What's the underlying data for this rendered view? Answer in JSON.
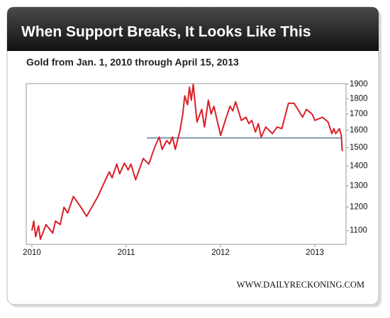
{
  "chart_data": {
    "type": "line",
    "title": "When Support Breaks, It Looks Like This",
    "subtitle": "Gold from Jan. 1, 2010 through April 15, 2013",
    "source": "WWW.DAILYRECKONING.COM",
    "x": [
      2010.0,
      2010.02,
      2010.04,
      2010.07,
      2010.09,
      2010.15,
      2010.22,
      2010.25,
      2010.3,
      2010.34,
      2010.38,
      2010.44,
      2010.52,
      2010.58,
      2010.7,
      2010.78,
      2010.82,
      2010.85,
      2010.9,
      2010.93,
      2010.98,
      2011.02,
      2011.05,
      2011.1,
      2011.18,
      2011.24,
      2011.3,
      2011.35,
      2011.38,
      2011.43,
      2011.46,
      2011.49,
      2011.52,
      2011.57,
      2011.6,
      2011.62,
      2011.65,
      2011.67,
      2011.69,
      2011.71,
      2011.75,
      2011.8,
      2011.83,
      2011.87,
      2011.9,
      2011.93,
      2012.0,
      2012.05,
      2012.1,
      2012.13,
      2012.16,
      2012.22,
      2012.27,
      2012.3,
      2012.33,
      2012.37,
      2012.4,
      2012.43,
      2012.48,
      2012.55,
      2012.6,
      2012.65,
      2012.72,
      2012.78,
      2012.87,
      2012.91,
      2012.97,
      2013.0,
      2013.08,
      2013.14,
      2013.18,
      2013.2,
      2013.22,
      2013.26,
      2013.28,
      2013.29
    ],
    "series": [
      {
        "name": "Gold",
        "color": "#d9202a",
        "values": [
          1100,
          1140,
          1075,
          1120,
          1065,
          1125,
          1090,
          1140,
          1125,
          1200,
          1175,
          1250,
          1200,
          1160,
          1250,
          1330,
          1370,
          1340,
          1410,
          1360,
          1415,
          1380,
          1410,
          1330,
          1440,
          1410,
          1500,
          1560,
          1490,
          1540,
          1520,
          1560,
          1490,
          1600,
          1700,
          1820,
          1760,
          1880,
          1790,
          1900,
          1650,
          1730,
          1620,
          1790,
          1700,
          1750,
          1570,
          1660,
          1750,
          1720,
          1780,
          1660,
          1680,
          1640,
          1660,
          1590,
          1640,
          1560,
          1620,
          1580,
          1620,
          1610,
          1770,
          1770,
          1680,
          1730,
          1700,
          1660,
          1680,
          1650,
          1580,
          1610,
          1580,
          1610,
          1570,
          1480
        ]
      }
    ],
    "support_line": {
      "value": 1555,
      "x": [
        2011.22,
        2013.29
      ],
      "color": "#5d7f94"
    },
    "xlim": [
      2009.94,
      2013.33
    ],
    "xticks": [
      2010,
      2011,
      2012,
      2013
    ],
    "ylim": [
      1045,
      1905
    ],
    "yticks": [
      1100,
      1200,
      1300,
      1400,
      1500,
      1600,
      1700,
      1800,
      1900
    ],
    "yscale": "log",
    "grid": false
  }
}
